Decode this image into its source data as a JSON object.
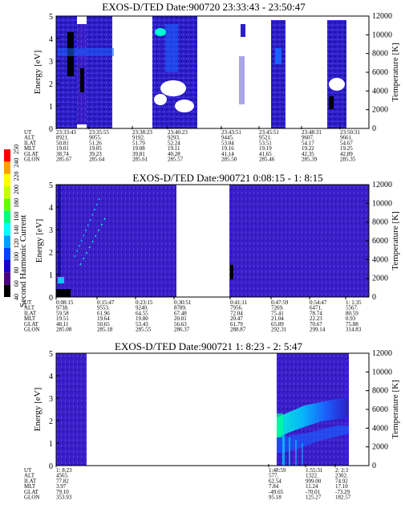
{
  "chart_data": {
    "type": "heatmap",
    "colorbar": {
      "label": "Second Harmonic Current",
      "ticks": [
        "40",
        "60",
        "80",
        "100",
        "120",
        "140",
        "160",
        "180",
        "200",
        "220",
        "240",
        "250"
      ],
      "colors": [
        "#000000",
        "#4b0082",
        "#1c00c8",
        "#0040ff",
        "#00a0ff",
        "#00ffff",
        "#00ff80",
        "#60ff00",
        "#c8ff00",
        "#ffff00",
        "#ffa000",
        "#ff0000"
      ]
    },
    "panels": [
      {
        "title": "EXOS-D/TED   Date:900720  23:33:43 - 23:50:47",
        "ylabel_left": "Energy [eV]",
        "ylabel_right": "Temperature [K]",
        "y_left_ticks": [
          "0",
          "1",
          "2",
          "3",
          "4",
          "5"
        ],
        "y_right_ticks": [
          "0",
          "2000",
          "4000",
          "6000",
          "8000",
          "10000",
          "12000"
        ],
        "ylim_left": [
          0,
          5
        ],
        "ylim_right": [
          0,
          12000
        ],
        "ephemeris_labels": [
          "UT",
          "ALT",
          "ILAT",
          "MLT",
          "GLAT",
          "GLON"
        ],
        "ephemeris": [
          [
            "23:33:43",
            "8921.",
            "50.81",
            "19.01",
            "38.74",
            "285.67"
          ],
          [
            "23:35:55",
            "9055.",
            "51.26",
            "19.05",
            "39.23",
            "285.64"
          ],
          [
            "23:38:23",
            "9192.",
            "51.79",
            "19.08",
            "39.81",
            "285.61"
          ],
          [
            "23:40:23",
            "9293.",
            "52.24",
            "19.11",
            "40.28",
            "285.57"
          ],
          [
            "23:43:51",
            "9445.",
            "53.04",
            "19.16",
            "41.14",
            "285.50"
          ],
          [
            "23:45:51",
            "9521.",
            "53.51",
            "19.19",
            "41.65",
            "285.46"
          ],
          [
            "23:48:31",
            "9607.",
            "54.17",
            "19.22",
            "42.35",
            "285.39"
          ],
          [
            "23:50:31",
            "9661.",
            "54.67",
            "19.25",
            "42.89",
            "285.35"
          ]
        ]
      },
      {
        "title": "EXOS-D/TED   Date:900721  0:08:15 -  1: 8:15",
        "ylabel_left": "Energy [eV]",
        "ylabel_right": "Temperature [K]",
        "y_left_ticks": [
          "0",
          "1",
          "2",
          "3",
          "4",
          "5"
        ],
        "y_right_ticks": [
          "0",
          "2000",
          "4000",
          "6000",
          "8000",
          "10000",
          "12000"
        ],
        "ylim_left": [
          0,
          5
        ],
        "ylim_right": [
          0,
          12000
        ],
        "ephemeris_labels": [
          "UT",
          "ALT",
          "ILAT",
          "MLT",
          "GLAT",
          "GLON"
        ],
        "ephemeris": [
          [
            "0:08:15",
            "9738.",
            "59.58",
            "19.51",
            "48.11",
            "285.08"
          ],
          [
            "0:15:47",
            "9553.",
            "61.96",
            "19.64",
            "50.65",
            "285.18"
          ],
          [
            "0:23:15",
            "9240.",
            "64.55",
            "19.80",
            "53.43",
            "285.55"
          ],
          [
            "0:30:51",
            "8789.",
            "67.48",
            "20.01",
            "56.63",
            "286.37"
          ],
          [
            "0:41:11",
            "7956.",
            "72.04",
            "20.47",
            "61.79",
            "288.87"
          ],
          [
            "0:47:59",
            "7269.",
            "75.41",
            "21.04",
            "65.89",
            "292.31"
          ],
          [
            "0:54:47",
            "6471.",
            "78.74",
            "22.23",
            "70.67",
            "299.14"
          ],
          [
            "1: 1:35",
            "5567.",
            "80.59",
            "0.93",
            "75.88",
            "314.83"
          ]
        ]
      },
      {
        "title": "EXOS-D/TED   Date:900721  1: 8:23 -  2: 5:47",
        "ylabel_left": "Energy [eV]",
        "ylabel_right": "Temperature [K]",
        "y_left_ticks": [
          "0",
          "1",
          "2",
          "3",
          "4",
          "5"
        ],
        "y_right_ticks": [
          "0",
          "2000",
          "4000",
          "6000",
          "8000",
          "10000",
          "12000"
        ],
        "ylim_left": [
          0,
          5
        ],
        "ylim_right": [
          0,
          12000
        ],
        "ephemeris_labels": [
          "UT",
          "ALT",
          "ILAT",
          "MLT",
          "GLAT",
          "GLON"
        ],
        "ephemeris": [
          [
            "1: 8:23",
            "4565.",
            "77.82",
            "3.97",
            "79.10",
            "353.93"
          ],
          [
            "1:48:59",
            "577.",
            "62.54",
            "7.84",
            "-49.65",
            "95.18"
          ],
          [
            "1:55:31",
            "1322.",
            "999.00",
            "11.24",
            "-70.01",
            "125.27"
          ],
          [
            "2: 2:3",
            "2302.",
            "74.92",
            "17.10",
            "-73.29",
            "182.57"
          ]
        ]
      }
    ]
  }
}
